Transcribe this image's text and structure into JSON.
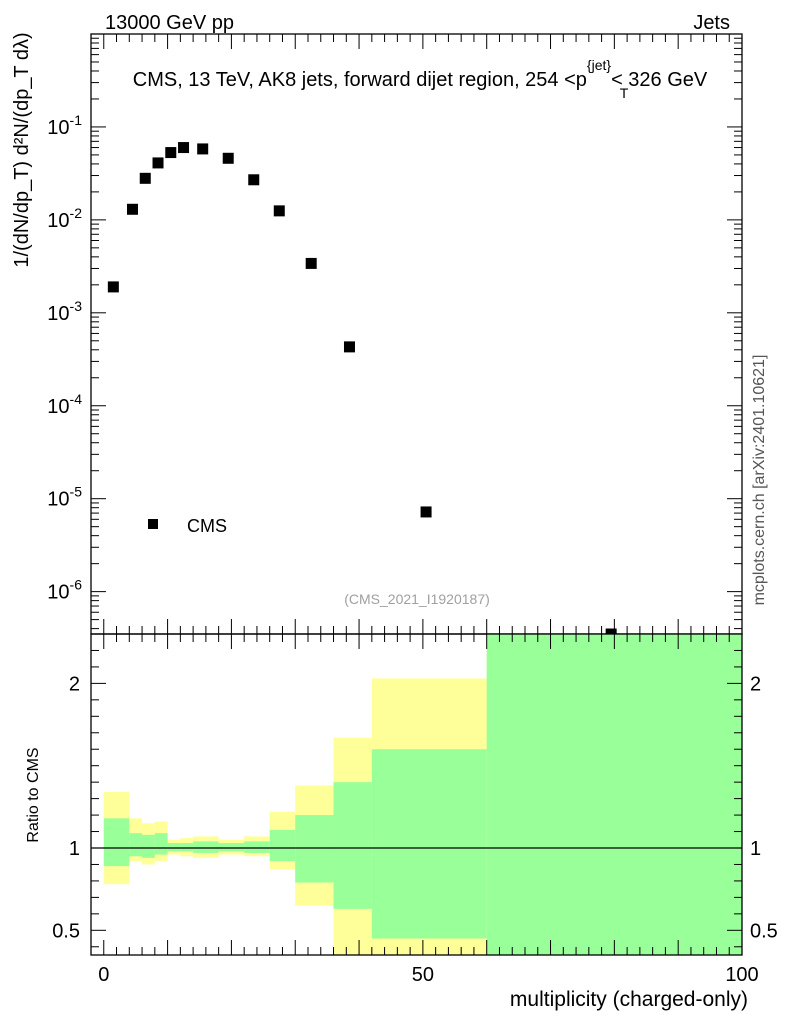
{
  "header": {
    "left": "13000 GeV pp",
    "right": "Jets"
  },
  "side_label": "mcplots.cern.ch [arXiv:2401.10621]",
  "watermark": "(CMS_2021_I1920187)",
  "chart_data": [
    {
      "type": "scatter",
      "panel": "main",
      "title": "CMS, 13 TeV, AK8 jets, forward dijet region, 254 <p_T^{jet}< 326 GeV",
      "ylabel": "1/(dN/dp_T) d²N/(dp_T dλ)",
      "yscale": "log",
      "xlim": [
        -2,
        100
      ],
      "ylim": [
        3.5e-07,
        1
      ],
      "ytick_labels": [
        "10^{-6}",
        "10^{-5}",
        "10^{-4}",
        "10^{-3}",
        "10^{-2}",
        "10^{-1}"
      ],
      "legend": {
        "label": "CMS",
        "placement": "bottom-left"
      },
      "series": [
        {
          "name": "CMS",
          "x": [
            1.5,
            4.5,
            6.5,
            8.5,
            10.5,
            12.5,
            15.5,
            19.5,
            23.5,
            27.5,
            32.5,
            38.5,
            50.5,
            79.5
          ],
          "y": [
            0.0019,
            0.013,
            0.028,
            0.041,
            0.053,
            0.06,
            0.058,
            0.046,
            0.027,
            0.0125,
            0.0034,
            0.00043,
            7.2e-06,
            3.5e-07
          ]
        }
      ]
    },
    {
      "type": "area",
      "panel": "ratio",
      "ylabel": "Ratio to CMS",
      "xlabel": "multiplicity (charged-only)",
      "xlim": [
        -2,
        100
      ],
      "ylim": [
        0.35,
        2.3
      ],
      "xtick_labels": [
        "0",
        "50",
        "100"
      ],
      "ytick_labels": [
        "0.5",
        "1",
        "2"
      ],
      "bins": [
        {
          "x0": 0,
          "x1": 4,
          "yellow": [
            0.78,
            1.34
          ],
          "green": [
            0.89,
            1.18
          ]
        },
        {
          "x0": 4,
          "x1": 6,
          "yellow": [
            0.92,
            1.18
          ],
          "green": [
            0.95,
            1.09
          ]
        },
        {
          "x0": 6,
          "x1": 8,
          "yellow": [
            0.9,
            1.15
          ],
          "green": [
            0.94,
            1.08
          ]
        },
        {
          "x0": 8,
          "x1": 10,
          "yellow": [
            0.92,
            1.16
          ],
          "green": [
            0.96,
            1.09
          ]
        },
        {
          "x0": 10,
          "x1": 12,
          "yellow": [
            0.96,
            1.05
          ],
          "green": [
            0.98,
            1.03
          ]
        },
        {
          "x0": 12,
          "x1": 14,
          "yellow": [
            0.95,
            1.06
          ],
          "green": [
            0.98,
            1.03
          ]
        },
        {
          "x0": 14,
          "x1": 18,
          "yellow": [
            0.94,
            1.07
          ],
          "green": [
            0.97,
            1.04
          ]
        },
        {
          "x0": 18,
          "x1": 22,
          "yellow": [
            0.96,
            1.05
          ],
          "green": [
            0.98,
            1.03
          ]
        },
        {
          "x0": 22,
          "x1": 26,
          "yellow": [
            0.95,
            1.07
          ],
          "green": [
            0.97,
            1.04
          ]
        },
        {
          "x0": 26,
          "x1": 30,
          "yellow": [
            0.87,
            1.22
          ],
          "green": [
            0.92,
            1.11
          ]
        },
        {
          "x0": 30,
          "x1": 36,
          "yellow": [
            0.65,
            1.38
          ],
          "green": [
            0.79,
            1.2
          ]
        },
        {
          "x0": 36,
          "x1": 42,
          "yellow": [
            0.35,
            1.67
          ],
          "green": [
            0.63,
            1.4
          ]
        },
        {
          "x0": 42,
          "x1": 60,
          "yellow": [
            0.35,
            2.03
          ],
          "green": [
            0.45,
            1.6
          ]
        },
        {
          "x0": 60,
          "x1": 100,
          "yellow": [
            0.35,
            2.3
          ],
          "green": [
            0.35,
            2.3
          ]
        }
      ],
      "reference_line": 1,
      "colors": {
        "yellow": "#ffff99",
        "green": "#99ff99"
      }
    }
  ]
}
